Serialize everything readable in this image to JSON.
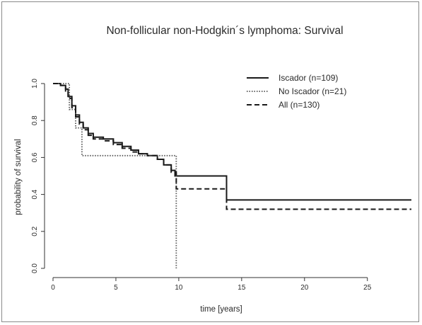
{
  "chart_data": {
    "type": "line",
    "title": "Non-follicular non-Hodgkin´s lymphoma: Survival",
    "xlabel": "time [years]",
    "ylabel": "probability of survival",
    "xlim": [
      0,
      28.5
    ],
    "ylim": [
      0,
      1.0
    ],
    "xticks": [
      "0",
      "5",
      "10",
      "15",
      "20",
      "25"
    ],
    "xtick_values": [
      0,
      5,
      10,
      15,
      20,
      25
    ],
    "yticks": [
      "0.0",
      "0.2",
      "0.4",
      "0.6",
      "0.8",
      "1.0"
    ],
    "ytick_values": [
      0,
      0.2,
      0.4,
      0.6,
      0.8,
      1.0
    ],
    "grid": false,
    "legend_position": "top-right",
    "series": [
      {
        "name": "Iscador (n=109)",
        "style": "solid",
        "color": "#1a1a1a",
        "steps": [
          [
            0,
            1.0
          ],
          [
            0.6,
            0.99
          ],
          [
            1.0,
            0.97
          ],
          [
            1.2,
            0.93
          ],
          [
            1.5,
            0.88
          ],
          [
            1.8,
            0.83
          ],
          [
            2.1,
            0.79
          ],
          [
            2.4,
            0.76
          ],
          [
            2.8,
            0.73
          ],
          [
            3.2,
            0.71
          ],
          [
            4.0,
            0.7
          ],
          [
            4.8,
            0.68
          ],
          [
            5.5,
            0.66
          ],
          [
            6.2,
            0.64
          ],
          [
            6.8,
            0.62
          ],
          [
            7.5,
            0.61
          ],
          [
            8.3,
            0.59
          ],
          [
            8.8,
            0.56
          ],
          [
            9.4,
            0.53
          ],
          [
            9.7,
            0.5
          ],
          [
            13.8,
            0.37
          ],
          [
            28.5,
            0.37
          ]
        ]
      },
      {
        "name": "No Iscador (n=21)",
        "style": "dotted",
        "color": "#555555",
        "steps": [
          [
            0,
            1.0
          ],
          [
            1.3,
            0.86
          ],
          [
            1.8,
            0.76
          ],
          [
            2.3,
            0.61
          ],
          [
            9.8,
            0.0
          ]
        ]
      },
      {
        "name": "All (n=130)",
        "style": "dashed",
        "color": "#1a1a1a",
        "steps": [
          [
            0,
            1.0
          ],
          [
            0.6,
            0.99
          ],
          [
            1.0,
            0.96
          ],
          [
            1.2,
            0.92
          ],
          [
            1.5,
            0.87
          ],
          [
            1.8,
            0.82
          ],
          [
            2.1,
            0.78
          ],
          [
            2.4,
            0.75
          ],
          [
            2.8,
            0.72
          ],
          [
            3.2,
            0.7
          ],
          [
            4.0,
            0.69
          ],
          [
            4.8,
            0.67
          ],
          [
            5.5,
            0.65
          ],
          [
            6.2,
            0.63
          ],
          [
            6.8,
            0.62
          ],
          [
            7.5,
            0.61
          ],
          [
            8.3,
            0.59
          ],
          [
            8.8,
            0.56
          ],
          [
            9.4,
            0.52
          ],
          [
            9.8,
            0.43
          ],
          [
            13.8,
            0.32
          ],
          [
            28.5,
            0.32
          ]
        ]
      }
    ]
  }
}
